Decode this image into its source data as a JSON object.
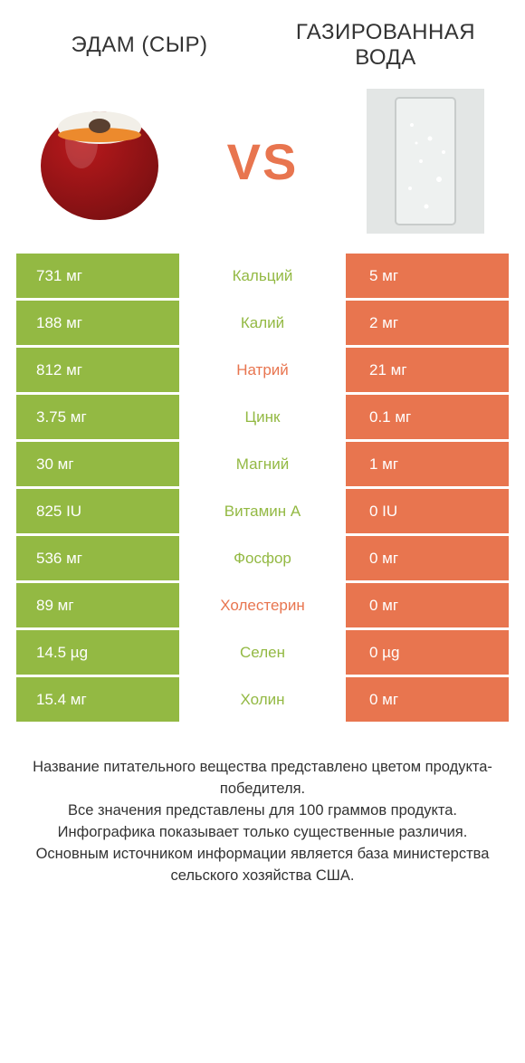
{
  "header": {
    "left_title": "ЭДАМ (СЫР)",
    "right_title": "ГАЗИРОВАННАЯ ВОДА",
    "vs": "VS"
  },
  "colors": {
    "green": "#93b943",
    "orange": "#e8754f",
    "row_bg": "#ffffff",
    "text": "#333333",
    "white": "#ffffff",
    "cheese_red": "#b8191c",
    "cheese_dark": "#7d1012",
    "cheese_label": "#f2efe8",
    "cheese_label_orange": "#ec8a2d",
    "glass_bg": "#e3e6e5",
    "glass_edge": "#c8cccb",
    "glass_liquid": "#eef1f0"
  },
  "comparison": {
    "type": "table",
    "rows": [
      {
        "left": "731 мг",
        "label": "Кальций",
        "right": "5 мг",
        "label_color": "green"
      },
      {
        "left": "188 мг",
        "label": "Калий",
        "right": "2 мг",
        "label_color": "green"
      },
      {
        "left": "812 мг",
        "label": "Натрий",
        "right": "21 мг",
        "label_color": "orange"
      },
      {
        "left": "3.75 мг",
        "label": "Цинк",
        "right": "0.1 мг",
        "label_color": "green"
      },
      {
        "left": "30 мг",
        "label": "Магний",
        "right": "1 мг",
        "label_color": "green"
      },
      {
        "left": "825 IU",
        "label": "Витамин A",
        "right": "0 IU",
        "label_color": "green"
      },
      {
        "left": "536 мг",
        "label": "Фосфор",
        "right": "0 мг",
        "label_color": "green"
      },
      {
        "left": "89 мг",
        "label": "Холестерин",
        "right": "0 мг",
        "label_color": "orange"
      },
      {
        "left": "14.5 µg",
        "label": "Селен",
        "right": "0 µg",
        "label_color": "green"
      },
      {
        "left": "15.4 мг",
        "label": "Холин",
        "right": "0 мг",
        "label_color": "green"
      }
    ]
  },
  "footer_lines": [
    "Название питательного вещества представлено цветом продукта-победителя.",
    "Все значения представлены для 100 граммов продукта.",
    "Инфографика показывает только существенные различия.",
    "Основным источником информации является база министерства сельского хозяйства США."
  ]
}
